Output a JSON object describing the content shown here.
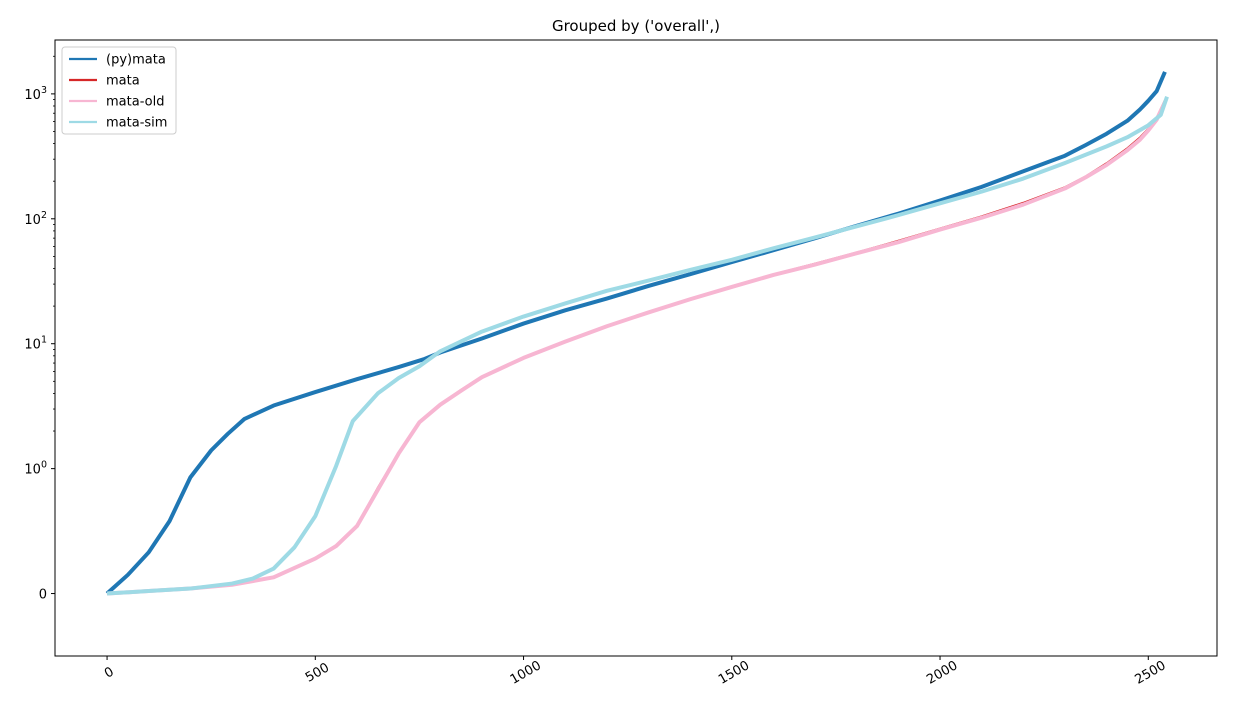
{
  "chart_data": {
    "type": "line",
    "title": "Grouped by ('overall',)",
    "xlabel": "",
    "ylabel": "",
    "xlim": [
      -125,
      2665
    ],
    "yscale": "symlog",
    "ylim": [
      -0.5,
      2700
    ],
    "grid": false,
    "legend_position": "top-left",
    "x_ticks": [
      0,
      500,
      1000,
      1500,
      2000,
      2500
    ],
    "x_tick_labels": [
      "0",
      "500",
      "1000",
      "1500",
      "2000",
      "2500"
    ],
    "y_ticks": [
      {
        "value": 0,
        "base": "0",
        "exp": ""
      },
      {
        "value": 1,
        "base": "10",
        "exp": "0"
      },
      {
        "value": 10,
        "base": "10",
        "exp": "1"
      },
      {
        "value": 100,
        "base": "10",
        "exp": "2"
      },
      {
        "value": 1000,
        "base": "10",
        "exp": "3"
      }
    ],
    "series": [
      {
        "name": "(py)mata",
        "color": "#1f77b4",
        "width": 4,
        "points": [
          [
            0,
            0
          ],
          [
            50,
            0.15
          ],
          [
            100,
            0.33
          ],
          [
            150,
            0.58
          ],
          [
            200,
            0.93
          ],
          [
            250,
            1.4
          ],
          [
            290,
            1.9
          ],
          [
            330,
            2.5
          ],
          [
            400,
            3.2
          ],
          [
            500,
            4.1
          ],
          [
            600,
            5.2
          ],
          [
            700,
            6.5
          ],
          [
            760,
            7.5
          ],
          [
            800,
            8.5
          ],
          [
            900,
            11
          ],
          [
            1000,
            14.5
          ],
          [
            1100,
            18.5
          ],
          [
            1200,
            23
          ],
          [
            1300,
            29
          ],
          [
            1400,
            36
          ],
          [
            1500,
            45
          ],
          [
            1600,
            56
          ],
          [
            1700,
            70
          ],
          [
            1800,
            88
          ],
          [
            1900,
            110
          ],
          [
            2000,
            140
          ],
          [
            2100,
            180
          ],
          [
            2200,
            240
          ],
          [
            2300,
            320
          ],
          [
            2350,
            390
          ],
          [
            2400,
            480
          ],
          [
            2450,
            610
          ],
          [
            2480,
            750
          ],
          [
            2500,
            880
          ],
          [
            2520,
            1050
          ],
          [
            2540,
            1500
          ]
        ]
      },
      {
        "name": "mata",
        "color": "#d62728",
        "width": 1.5,
        "points": [
          [
            0,
            0
          ],
          [
            100,
            0.02
          ],
          [
            200,
            0.04
          ],
          [
            300,
            0.07
          ],
          [
            400,
            0.13
          ],
          [
            500,
            0.28
          ],
          [
            550,
            0.39
          ],
          [
            600,
            0.55
          ],
          [
            650,
            0.85
          ],
          [
            700,
            1.35
          ],
          [
            750,
            2.4
          ],
          [
            800,
            3.3
          ],
          [
            850,
            4.3
          ],
          [
            900,
            5.5
          ],
          [
            1000,
            7.8
          ],
          [
            1100,
            10.5
          ],
          [
            1200,
            14
          ],
          [
            1300,
            18
          ],
          [
            1400,
            23
          ],
          [
            1500,
            29
          ],
          [
            1600,
            36
          ],
          [
            1700,
            44
          ],
          [
            1800,
            54
          ],
          [
            1900,
            67
          ],
          [
            2000,
            84
          ],
          [
            2100,
            105
          ],
          [
            2200,
            135
          ],
          [
            2300,
            180
          ],
          [
            2350,
            220
          ],
          [
            2400,
            280
          ],
          [
            2450,
            370
          ],
          [
            2480,
            450
          ],
          [
            2500,
            530
          ],
          [
            2520,
            650
          ],
          [
            2540,
            900
          ]
        ]
      },
      {
        "name": "mata-old",
        "color": "#f7b6d2",
        "width": 4,
        "points": [
          [
            0,
            0
          ],
          [
            100,
            0.02
          ],
          [
            200,
            0.04
          ],
          [
            300,
            0.07
          ],
          [
            400,
            0.13
          ],
          [
            500,
            0.28
          ],
          [
            550,
            0.38
          ],
          [
            600,
            0.54
          ],
          [
            650,
            0.83
          ],
          [
            700,
            1.32
          ],
          [
            750,
            2.35
          ],
          [
            800,
            3.25
          ],
          [
            850,
            4.2
          ],
          [
            900,
            5.4
          ],
          [
            1000,
            7.7
          ],
          [
            1100,
            10.4
          ],
          [
            1200,
            13.8
          ],
          [
            1300,
            17.8
          ],
          [
            1400,
            22.7
          ],
          [
            1500,
            28.5
          ],
          [
            1600,
            35.5
          ],
          [
            1700,
            43
          ],
          [
            1800,
            53
          ],
          [
            1900,
            65
          ],
          [
            2000,
            82
          ],
          [
            2100,
            102
          ],
          [
            2200,
            130
          ],
          [
            2300,
            175
          ],
          [
            2350,
            215
          ],
          [
            2400,
            270
          ],
          [
            2450,
            355
          ],
          [
            2480,
            430
          ],
          [
            2500,
            510
          ],
          [
            2520,
            620
          ],
          [
            2540,
            860
          ]
        ]
      },
      {
        "name": "mata-sim",
        "color": "#9edae5",
        "width": 4,
        "points": [
          [
            0,
            0
          ],
          [
            100,
            0.02
          ],
          [
            200,
            0.04
          ],
          [
            300,
            0.08
          ],
          [
            350,
            0.12
          ],
          [
            400,
            0.2
          ],
          [
            450,
            0.37
          ],
          [
            500,
            0.62
          ],
          [
            550,
            1.05
          ],
          [
            590,
            2.4
          ],
          [
            650,
            4.0
          ],
          [
            700,
            5.3
          ],
          [
            750,
            6.6
          ],
          [
            800,
            8.7
          ],
          [
            900,
            12.5
          ],
          [
            1000,
            16.5
          ],
          [
            1100,
            21
          ],
          [
            1200,
            26.5
          ],
          [
            1300,
            32
          ],
          [
            1400,
            39
          ],
          [
            1500,
            47
          ],
          [
            1600,
            58
          ],
          [
            1700,
            71
          ],
          [
            1800,
            87
          ],
          [
            1900,
            107
          ],
          [
            2000,
            133
          ],
          [
            2100,
            165
          ],
          [
            2200,
            210
          ],
          [
            2300,
            280
          ],
          [
            2400,
            380
          ],
          [
            2450,
            450
          ],
          [
            2500,
            560
          ],
          [
            2530,
            680
          ],
          [
            2545,
            950
          ]
        ]
      }
    ]
  }
}
